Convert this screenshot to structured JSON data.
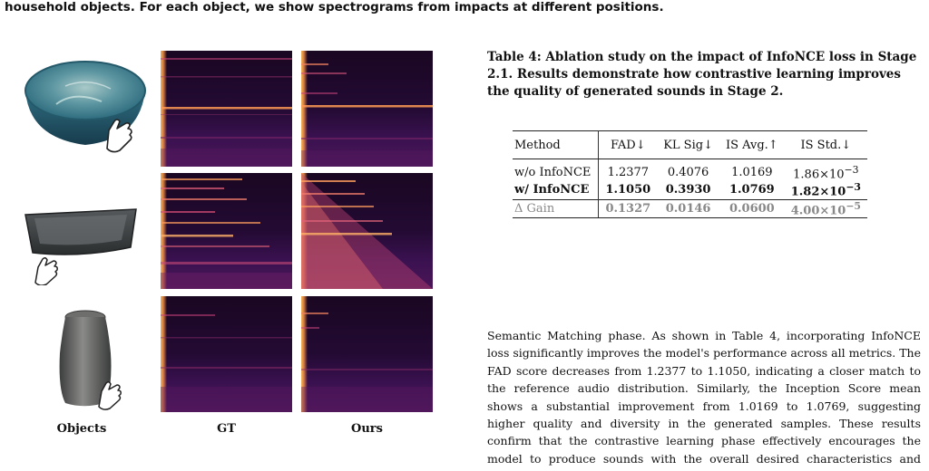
{
  "figure": {
    "caption_fragment": "household objects. For each object, we show spectrograms from impacts at different positions.",
    "column_labels": {
      "objects": "Objects",
      "gt": "GT",
      "ours": "Ours"
    },
    "rows": [
      {
        "object_icon": "bowl-icon"
      },
      {
        "object_icon": "tray-icon"
      },
      {
        "object_icon": "jar-icon"
      }
    ],
    "colors": {
      "spectrogram_dark": "#1a0722",
      "spectrogram_hot": "#ffb35a",
      "spectrogram_mid": "#b83a6b"
    }
  },
  "table": {
    "caption": "Table 4: Ablation study on the impact of InfoNCE loss in Stage 2.1. Results demonstrate how contrastive learning improves the quality of generated sounds in Stage 2.",
    "headers": [
      "Method",
      "FAD↓",
      "KL Sig↓",
      "IS Avg.↑",
      "IS Std.↓"
    ],
    "rows": [
      {
        "method": "w/o InfoNCE",
        "fad": "1.2377",
        "kl": "0.4076",
        "is_avg": "1.0169",
        "is_std_mant": "1.86×10",
        "is_std_exp": "−3"
      },
      {
        "method": "w/ InfoNCE",
        "fad": "1.1050",
        "kl": "0.3930",
        "is_avg": "1.0769",
        "is_std_mant": "1.82×10",
        "is_std_exp": "−3"
      }
    ],
    "gain": {
      "method": "Δ Gain",
      "fad": "0.1327",
      "kl": "0.0146",
      "is_avg": "0.0600",
      "is_std_mant": "4.00×10",
      "is_std_exp": "−5"
    }
  },
  "body_text": "Semantic Matching phase. As shown in Table 4, incorporating InfoNCE loss significantly improves the model's performance across all metrics. The FAD score decreases from 1.2377 to 1.1050, indicating a closer match to the reference audio distribution. Similarly, the Inception Score mean shows a substantial improvement from 1.0169 to 1.0769, suggesting higher quality and diversity in the generated samples. These results confirm that the contrastive learning phase effectively encourages the model to produce sounds with the overall desired characteristics and better alignment with the target."
}
